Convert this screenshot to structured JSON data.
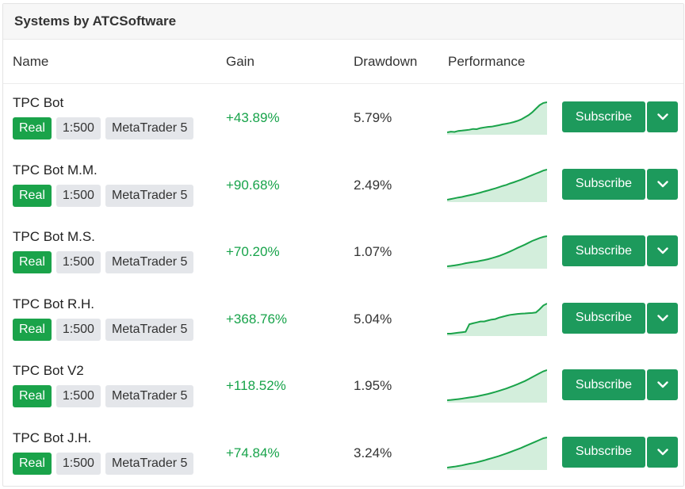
{
  "panel": {
    "title": "Systems by ATCSoftware"
  },
  "columns": {
    "name": "Name",
    "gain": "Gain",
    "drawdown": "Drawdown",
    "performance": "Performance"
  },
  "colors": {
    "accent": "#1d9a5c",
    "real_badge": "#1aa34a",
    "gain_positive": "#17a34a",
    "chart_line": "#1aa34a",
    "chart_fill": "#d3eedc"
  },
  "systems": [
    {
      "name": "TPC Bot",
      "type": "Real",
      "leverage": "1:500",
      "platform": "MetaTrader 5",
      "gain": "+43.89%",
      "drawdown": "5.79%",
      "subscribe": "Subscribe",
      "performance": [
        0,
        0.5,
        0.3,
        1,
        1.2,
        1.5,
        1.8,
        2.4,
        2.2,
        3,
        3.4,
        3.8,
        4,
        4.5,
        5,
        5.6,
        6,
        6.5,
        7.2,
        8,
        9,
        10.5,
        12,
        14,
        16.5,
        19,
        20.5,
        21
      ]
    },
    {
      "name": "TPC Bot M.M.",
      "type": "Real",
      "leverage": "1:500",
      "platform": "MetaTrader 5",
      "gain": "+90.68%",
      "drawdown": "2.49%",
      "subscribe": "Subscribe",
      "performance": [
        0,
        0.8,
        1.6,
        2.5,
        3.2,
        4.2,
        5.1,
        6,
        7.1,
        8.2,
        9.4,
        10.5,
        11.8,
        13,
        14.3,
        15.8,
        17,
        18.6,
        20,
        21.5,
        23,
        24.7,
        26.5,
        28.2,
        30,
        31.6,
        33.4,
        34.5
      ]
    },
    {
      "name": "TPC Bot M.S.",
      "type": "Real",
      "leverage": "1:500",
      "platform": "MetaTrader 5",
      "gain": "+70.20%",
      "drawdown": "1.07%",
      "subscribe": "Subscribe",
      "performance": [
        0,
        0.5,
        1.2,
        2,
        3,
        4.2,
        5,
        5.8,
        6.5,
        7.5,
        8.5,
        9.6,
        11,
        12.5,
        14,
        16,
        18,
        20.2,
        22.5,
        25,
        27.2,
        29.5,
        32,
        34.5,
        36.5,
        38.5,
        40,
        41
      ]
    },
    {
      "name": "TPC Bot R.H.",
      "type": "Real",
      "leverage": "1:500",
      "platform": "MetaTrader 5",
      "gain": "+368.76%",
      "drawdown": "5.04%",
      "subscribe": "Subscribe",
      "performance": [
        0,
        0,
        0.5,
        1,
        1.5,
        2,
        10,
        11,
        12,
        13,
        13,
        14,
        15,
        15.5,
        17,
        18,
        19,
        20,
        20.5,
        21,
        21.3,
        21.5,
        21.8,
        22,
        22.5,
        26,
        30,
        32
      ]
    },
    {
      "name": "TPC Bot V2",
      "type": "Real",
      "leverage": "1:500",
      "platform": "MetaTrader 5",
      "gain": "+118.52%",
      "drawdown": "1.95%",
      "subscribe": "Subscribe",
      "performance": [
        0,
        0.4,
        0.9,
        1.4,
        2,
        2.8,
        3.5,
        4.2,
        5,
        6,
        7,
        8,
        9.2,
        10.5,
        12,
        13.5,
        15,
        16.8,
        18.5,
        20.5,
        22.5,
        24.5,
        27,
        29.5,
        32,
        34.5,
        37,
        38.5
      ]
    },
    {
      "name": "TPC Bot J.H.",
      "type": "Real",
      "leverage": "1:500",
      "platform": "MetaTrader 5",
      "gain": "+74.84%",
      "drawdown": "3.24%",
      "subscribe": "Subscribe",
      "performance": [
        0,
        0.6,
        1.2,
        2,
        2.8,
        3.8,
        4.8,
        5.6,
        6.6,
        7.8,
        9,
        10.4,
        11.6,
        13,
        14.4,
        16,
        17.6,
        19.2,
        21,
        22.8,
        24.5,
        26.5,
        28.5,
        30.5,
        32.5,
        34.5,
        36.5,
        37.5
      ]
    }
  ]
}
